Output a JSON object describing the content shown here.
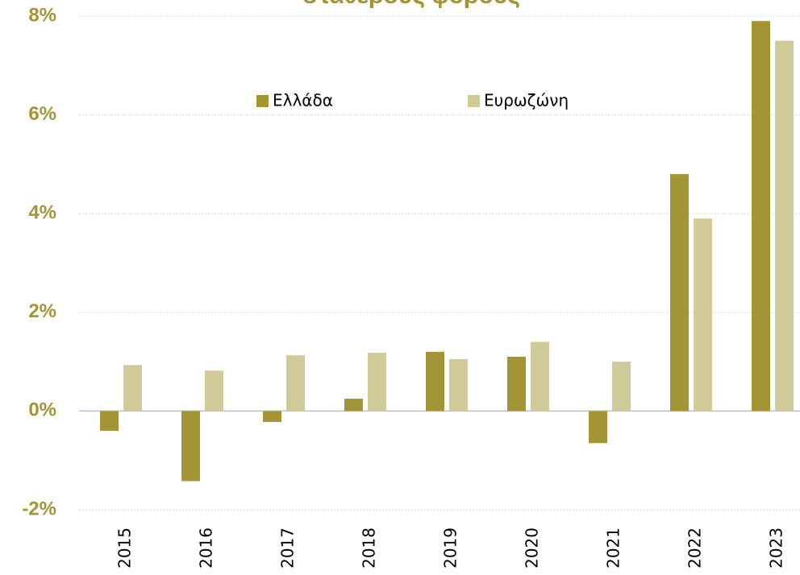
{
  "chart_data": {
    "type": "bar",
    "title": "σταθερούς φόρους",
    "categories": [
      "2015",
      "2016",
      "2017",
      "2018",
      "2019",
      "2020",
      "2021",
      "2022",
      "2023"
    ],
    "series": [
      {
        "name": "Ελλάδα",
        "color": "#a39435",
        "values": [
          -0.4,
          -1.42,
          -0.22,
          0.25,
          1.2,
          1.1,
          -0.65,
          4.8,
          7.9
        ]
      },
      {
        "name": "Ευρωζώνη",
        "color": "#cfca98",
        "values": [
          0.93,
          0.82,
          1.13,
          1.18,
          1.05,
          1.4,
          1.0,
          3.9,
          7.5
        ]
      }
    ],
    "ylim": [
      -2,
      8
    ],
    "yticks": [
      {
        "value": -2,
        "label": "-2%"
      },
      {
        "value": 0,
        "label": "0%"
      },
      {
        "value": 2,
        "label": "2%"
      },
      {
        "value": 4,
        "label": "4%"
      },
      {
        "value": 6,
        "label": "6%"
      },
      {
        "value": 8,
        "label": "8%"
      }
    ],
    "grid": true
  }
}
